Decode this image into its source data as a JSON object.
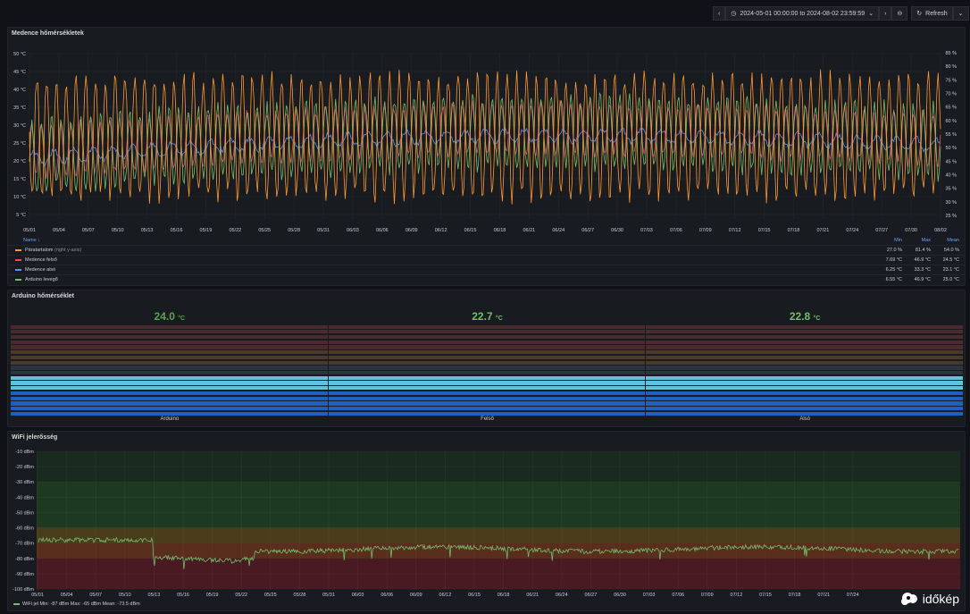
{
  "toolbar": {
    "time_range": "2024-05-01 00:00:00 to 2024-08-02 23:59:59",
    "refresh_label": "Refresh"
  },
  "panel1": {
    "title": "Medence hőmérsékletek",
    "left_axis": [
      "50 °C",
      "45 °C",
      "40 °C",
      "35 °C",
      "30 °C",
      "25 °C",
      "20 °C",
      "15 °C",
      "10 °C",
      "5 °C"
    ],
    "right_axis": [
      "85 %",
      "80 %",
      "75 %",
      "70 %",
      "65 %",
      "60 %",
      "55 %",
      "50 %",
      "45 %",
      "40 %",
      "35 %",
      "30 %",
      "25 %"
    ],
    "x_ticks": [
      "05/01",
      "05/04",
      "05/07",
      "05/10",
      "05/13",
      "05/16",
      "05/19",
      "05/22",
      "05/25",
      "05/28",
      "05/31",
      "06/03",
      "06/06",
      "06/09",
      "06/12",
      "06/15",
      "06/18",
      "06/21",
      "06/24",
      "06/27",
      "06/30",
      "07/03",
      "07/06",
      "07/09",
      "07/12",
      "07/15",
      "07/18",
      "07/21",
      "07/24",
      "07/27",
      "07/30",
      "08/02"
    ],
    "legend_headers": {
      "name": "Name ↓",
      "min": "Min",
      "max": "Max",
      "mean": "Mean"
    },
    "legend": [
      {
        "name": "Páratartalom",
        "suffix": "(right y-axis)",
        "color": "#ff9830",
        "min": "27.0 %",
        "max": "81.4 %",
        "mean": "54.0 %"
      },
      {
        "name": "Medence felső",
        "suffix": "",
        "color": "#f2495c",
        "min": "7.69 °C",
        "max": "46.9 °C",
        "mean": "24.5 °C"
      },
      {
        "name": "Medence alsó",
        "suffix": "",
        "color": "#5794f2",
        "min": "6.25 °C",
        "max": "33.3 °C",
        "mean": "23.1 °C"
      },
      {
        "name": "Arduino levegő",
        "suffix": "",
        "color": "#73bf69",
        "min": "6.55 °C",
        "max": "46.9 °C",
        "mean": "25.0 °C"
      }
    ]
  },
  "panel2": {
    "title": "Arduino hőmérséklet",
    "gauges": [
      {
        "value": "24.0",
        "unit": "°C",
        "label": "Arduino",
        "level": 0.44
      },
      {
        "value": "22.7",
        "unit": "°C",
        "label": "Felső",
        "level": 0.42
      },
      {
        "value": "22.8",
        "unit": "°C",
        "label": "Alsó",
        "level": 0.42
      }
    ]
  },
  "panel3": {
    "title": "WiFi jelerősség",
    "y_axis": [
      "-10 dBm",
      "-20 dBm",
      "-30 dBm",
      "-40 dBm",
      "-50 dBm",
      "-60 dBm",
      "-70 dBm",
      "-80 dBm",
      "-90 dBm",
      "-100 dBm"
    ],
    "x_ticks": [
      "05/01",
      "05/04",
      "05/07",
      "05/10",
      "05/13",
      "05/16",
      "05/19",
      "05/22",
      "05/25",
      "05/28",
      "05/31",
      "06/03",
      "06/06",
      "06/09",
      "06/12",
      "06/15",
      "06/18",
      "06/21",
      "06/24",
      "06/27",
      "06/30",
      "07/03",
      "07/06",
      "07/09",
      "07/12",
      "07/15",
      "07/18",
      "07/21",
      "07/24"
    ],
    "legend_text": "WiFi jel  Min: -87 dBm  Max: -65 dBm  Mean: -73.5 dBm",
    "line_color": "#73bf69"
  },
  "watermark": {
    "text": "időkép"
  }
}
